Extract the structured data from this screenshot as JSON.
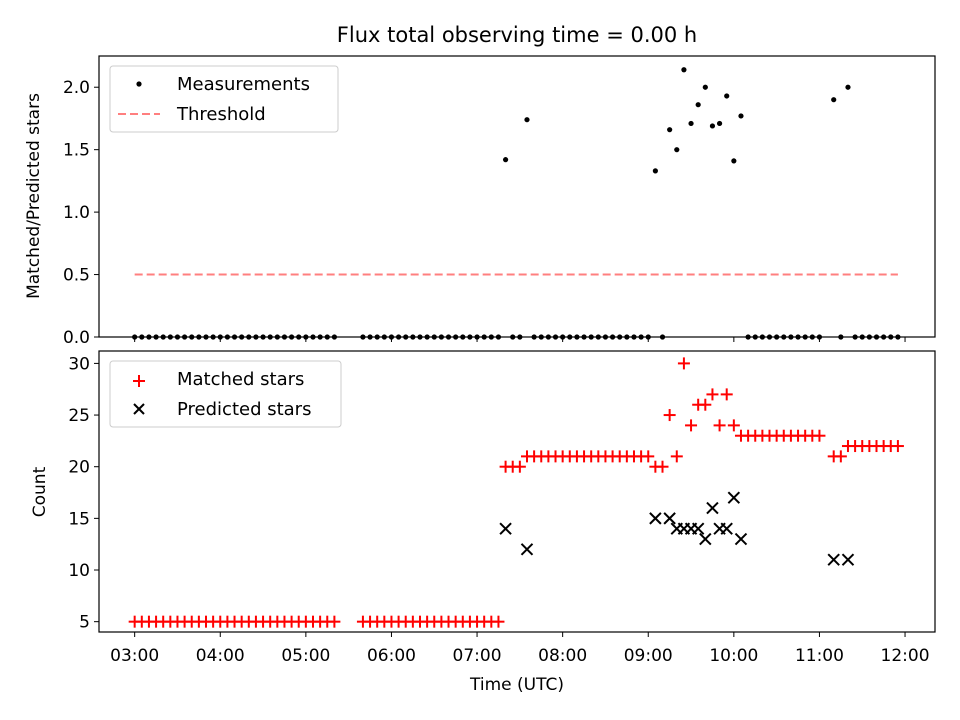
{
  "chart_data": [
    {
      "type": "scatter",
      "title": "Flux total observing time = 0.00 h",
      "xlabel": "",
      "ylabel": "Matched/Predicted stars",
      "ylim": [
        0.0,
        2.25
      ],
      "yticks": [
        0.0,
        0.5,
        1.0,
        1.5,
        2.0
      ],
      "ytick_labels": [
        "0.0",
        "0.5",
        "1.0",
        "1.5",
        "2.0"
      ],
      "legend_position": "upper-left",
      "series": [
        {
          "name": "Measurements",
          "marker": "dot",
          "color": "#000000",
          "points": [
            [
              "03:00",
              0
            ],
            [
              "03:05",
              0
            ],
            [
              "03:10",
              0
            ],
            [
              "03:15",
              0
            ],
            [
              "03:20",
              0
            ],
            [
              "03:25",
              0
            ],
            [
              "03:30",
              0
            ],
            [
              "03:35",
              0
            ],
            [
              "03:40",
              0
            ],
            [
              "03:45",
              0
            ],
            [
              "03:50",
              0
            ],
            [
              "03:55",
              0
            ],
            [
              "04:00",
              0
            ],
            [
              "04:05",
              0
            ],
            [
              "04:10",
              0
            ],
            [
              "04:15",
              0
            ],
            [
              "04:20",
              0
            ],
            [
              "04:25",
              0
            ],
            [
              "04:30",
              0
            ],
            [
              "04:35",
              0
            ],
            [
              "04:40",
              0
            ],
            [
              "04:45",
              0
            ],
            [
              "04:50",
              0
            ],
            [
              "04:55",
              0
            ],
            [
              "05:00",
              0
            ],
            [
              "05:05",
              0
            ],
            [
              "05:10",
              0
            ],
            [
              "05:15",
              0
            ],
            [
              "05:20",
              0
            ],
            [
              "05:40",
              0
            ],
            [
              "05:45",
              0
            ],
            [
              "05:50",
              0
            ],
            [
              "05:55",
              0
            ],
            [
              "06:00",
              0
            ],
            [
              "06:05",
              0
            ],
            [
              "06:10",
              0
            ],
            [
              "06:15",
              0
            ],
            [
              "06:20",
              0
            ],
            [
              "06:25",
              0
            ],
            [
              "06:30",
              0
            ],
            [
              "06:35",
              0
            ],
            [
              "06:40",
              0
            ],
            [
              "06:45",
              0
            ],
            [
              "06:50",
              0
            ],
            [
              "06:55",
              0
            ],
            [
              "07:00",
              0
            ],
            [
              "07:05",
              0
            ],
            [
              "07:10",
              0
            ],
            [
              "07:15",
              0
            ],
            [
              "07:20",
              1.42
            ],
            [
              "07:25",
              0
            ],
            [
              "07:30",
              0
            ],
            [
              "07:35",
              1.74
            ],
            [
              "07:40",
              0
            ],
            [
              "07:45",
              0
            ],
            [
              "07:50",
              0
            ],
            [
              "07:55",
              0
            ],
            [
              "08:00",
              0
            ],
            [
              "08:05",
              0
            ],
            [
              "08:10",
              0
            ],
            [
              "08:15",
              0
            ],
            [
              "08:20",
              0
            ],
            [
              "08:25",
              0
            ],
            [
              "08:30",
              0
            ],
            [
              "08:35",
              0
            ],
            [
              "08:40",
              0
            ],
            [
              "08:45",
              0
            ],
            [
              "08:50",
              0
            ],
            [
              "08:55",
              0
            ],
            [
              "09:00",
              0
            ],
            [
              "09:05",
              1.33
            ],
            [
              "09:10",
              0
            ],
            [
              "09:15",
              1.66
            ],
            [
              "09:20",
              1.5
            ],
            [
              "09:25",
              2.14
            ],
            [
              "09:30",
              1.71
            ],
            [
              "09:35",
              1.86
            ],
            [
              "09:40",
              2.0
            ],
            [
              "09:45",
              1.69
            ],
            [
              "09:50",
              1.71
            ],
            [
              "09:55",
              1.93
            ],
            [
              "10:00",
              1.41
            ],
            [
              "10:05",
              1.77
            ],
            [
              "10:10",
              0
            ],
            [
              "10:15",
              0
            ],
            [
              "10:20",
              0
            ],
            [
              "10:25",
              0
            ],
            [
              "10:30",
              0
            ],
            [
              "10:35",
              0
            ],
            [
              "10:40",
              0
            ],
            [
              "10:45",
              0
            ],
            [
              "10:50",
              0
            ],
            [
              "10:55",
              0
            ],
            [
              "11:00",
              0
            ],
            [
              "11:10",
              1.9
            ],
            [
              "11:15",
              0
            ],
            [
              "11:20",
              2.0
            ],
            [
              "11:25",
              0
            ],
            [
              "11:30",
              0
            ],
            [
              "11:35",
              0
            ],
            [
              "11:40",
              0
            ],
            [
              "11:45",
              0
            ],
            [
              "11:50",
              0
            ],
            [
              "11:55",
              0
            ]
          ]
        },
        {
          "name": "Threshold",
          "marker": "dashed-line",
          "color": "#ff7f7f",
          "points": [
            [
              "03:00",
              0.5
            ],
            [
              "11:55",
              0.5
            ]
          ]
        }
      ]
    },
    {
      "type": "scatter",
      "title": "",
      "xlabel": "Time (UTC)",
      "ylabel": "Count",
      "ylim": [
        4.0,
        31.2
      ],
      "yticks": [
        5,
        10,
        15,
        20,
        25,
        30
      ],
      "ytick_labels": [
        "5",
        "10",
        "15",
        "20",
        "25",
        "30"
      ],
      "xtick_labels": [
        "03:00",
        "04:00",
        "05:00",
        "06:00",
        "07:00",
        "08:00",
        "09:00",
        "10:00",
        "11:00",
        "12:00"
      ],
      "legend_position": "upper-left",
      "series": [
        {
          "name": "Matched stars",
          "marker": "plus",
          "color": "#ff0000",
          "points": [
            [
              "03:00",
              5
            ],
            [
              "03:05",
              5
            ],
            [
              "03:10",
              5
            ],
            [
              "03:15",
              5
            ],
            [
              "03:20",
              5
            ],
            [
              "03:25",
              5
            ],
            [
              "03:30",
              5
            ],
            [
              "03:35",
              5
            ],
            [
              "03:40",
              5
            ],
            [
              "03:45",
              5
            ],
            [
              "03:50",
              5
            ],
            [
              "03:55",
              5
            ],
            [
              "04:00",
              5
            ],
            [
              "04:05",
              5
            ],
            [
              "04:10",
              5
            ],
            [
              "04:15",
              5
            ],
            [
              "04:20",
              5
            ],
            [
              "04:25",
              5
            ],
            [
              "04:30",
              5
            ],
            [
              "04:35",
              5
            ],
            [
              "04:40",
              5
            ],
            [
              "04:45",
              5
            ],
            [
              "04:50",
              5
            ],
            [
              "04:55",
              5
            ],
            [
              "05:00",
              5
            ],
            [
              "05:05",
              5
            ],
            [
              "05:10",
              5
            ],
            [
              "05:15",
              5
            ],
            [
              "05:20",
              5
            ],
            [
              "05:40",
              5
            ],
            [
              "05:45",
              5
            ],
            [
              "05:50",
              5
            ],
            [
              "05:55",
              5
            ],
            [
              "06:00",
              5
            ],
            [
              "06:05",
              5
            ],
            [
              "06:10",
              5
            ],
            [
              "06:15",
              5
            ],
            [
              "06:20",
              5
            ],
            [
              "06:25",
              5
            ],
            [
              "06:30",
              5
            ],
            [
              "06:35",
              5
            ],
            [
              "06:40",
              5
            ],
            [
              "06:45",
              5
            ],
            [
              "06:50",
              5
            ],
            [
              "06:55",
              5
            ],
            [
              "07:00",
              5
            ],
            [
              "07:05",
              5
            ],
            [
              "07:10",
              5
            ],
            [
              "07:15",
              5
            ],
            [
              "07:20",
              20
            ],
            [
              "07:25",
              20
            ],
            [
              "07:30",
              20
            ],
            [
              "07:35",
              21
            ],
            [
              "07:40",
              21
            ],
            [
              "07:45",
              21
            ],
            [
              "07:50",
              21
            ],
            [
              "07:55",
              21
            ],
            [
              "08:00",
              21
            ],
            [
              "08:05",
              21
            ],
            [
              "08:10",
              21
            ],
            [
              "08:15",
              21
            ],
            [
              "08:20",
              21
            ],
            [
              "08:25",
              21
            ],
            [
              "08:30",
              21
            ],
            [
              "08:35",
              21
            ],
            [
              "08:40",
              21
            ],
            [
              "08:45",
              21
            ],
            [
              "08:50",
              21
            ],
            [
              "08:55",
              21
            ],
            [
              "09:00",
              21
            ],
            [
              "09:05",
              20
            ],
            [
              "09:10",
              20
            ],
            [
              "09:15",
              25
            ],
            [
              "09:20",
              21
            ],
            [
              "09:25",
              30
            ],
            [
              "09:30",
              24
            ],
            [
              "09:35",
              26
            ],
            [
              "09:40",
              26
            ],
            [
              "09:45",
              27
            ],
            [
              "09:50",
              24
            ],
            [
              "09:55",
              27
            ],
            [
              "10:00",
              24
            ],
            [
              "10:05",
              23
            ],
            [
              "10:10",
              23
            ],
            [
              "10:15",
              23
            ],
            [
              "10:20",
              23
            ],
            [
              "10:25",
              23
            ],
            [
              "10:30",
              23
            ],
            [
              "10:35",
              23
            ],
            [
              "10:40",
              23
            ],
            [
              "10:45",
              23
            ],
            [
              "10:50",
              23
            ],
            [
              "10:55",
              23
            ],
            [
              "11:00",
              23
            ],
            [
              "11:10",
              21
            ],
            [
              "11:15",
              21
            ],
            [
              "11:20",
              22
            ],
            [
              "11:25",
              22
            ],
            [
              "11:30",
              22
            ],
            [
              "11:35",
              22
            ],
            [
              "11:40",
              22
            ],
            [
              "11:45",
              22
            ],
            [
              "11:50",
              22
            ],
            [
              "11:55",
              22
            ]
          ]
        },
        {
          "name": "Predicted stars",
          "marker": "x",
          "color": "#000000",
          "points": [
            [
              "07:20",
              14
            ],
            [
              "07:35",
              12
            ],
            [
              "09:05",
              15
            ],
            [
              "09:15",
              15
            ],
            [
              "09:20",
              14
            ],
            [
              "09:25",
              14
            ],
            [
              "09:30",
              14
            ],
            [
              "09:35",
              14
            ],
            [
              "09:40",
              13
            ],
            [
              "09:45",
              16
            ],
            [
              "09:50",
              14
            ],
            [
              "09:55",
              14
            ],
            [
              "10:00",
              17
            ],
            [
              "10:05",
              13
            ],
            [
              "11:10",
              11
            ],
            [
              "11:20",
              11
            ]
          ]
        }
      ]
    }
  ]
}
